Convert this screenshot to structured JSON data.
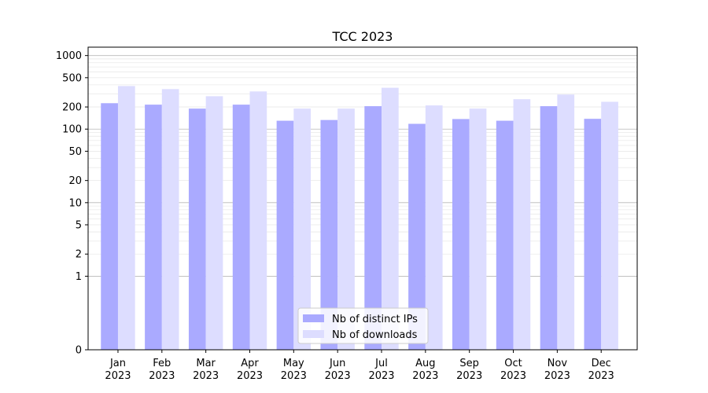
{
  "chart_data": {
    "type": "bar",
    "title": "TCC 2023",
    "xlabel": "",
    "ylabel": "",
    "yscale": "symlog",
    "ylim": [
      0,
      1300
    ],
    "categories": [
      "Jan\n2023",
      "Feb\n2023",
      "Mar\n2023",
      "Apr\n2023",
      "May\n2023",
      "Jun\n2023",
      "Jul\n2023",
      "Aug\n2023",
      "Sep\n2023",
      "Oct\n2023",
      "Nov\n2023",
      "Dec\n2023"
    ],
    "series": [
      {
        "name": "Nb of distinct IPs",
        "color": "#aaaaff",
        "values": [
          225,
          215,
          190,
          215,
          130,
          133,
          205,
          118,
          137,
          130,
          205,
          138
        ]
      },
      {
        "name": "Nb of downloads",
        "color": "#ddddff",
        "values": [
          385,
          350,
          280,
          325,
          190,
          190,
          365,
          210,
          190,
          255,
          295,
          235
        ]
      }
    ],
    "yticks": [
      {
        "value": 0,
        "label": "0"
      },
      {
        "value": 1,
        "label": "1"
      },
      {
        "value": 2,
        "label": "2"
      },
      {
        "value": 5,
        "label": "5"
      },
      {
        "value": 10,
        "label": "10"
      },
      {
        "value": 20,
        "label": "20"
      },
      {
        "value": 50,
        "label": "50"
      },
      {
        "value": 100,
        "label": "100"
      },
      {
        "value": 200,
        "label": "200"
      },
      {
        "value": 500,
        "label": "500"
      },
      {
        "value": 1000,
        "label": "1000"
      }
    ],
    "grid": true,
    "legend_position": "bottom-center"
  }
}
